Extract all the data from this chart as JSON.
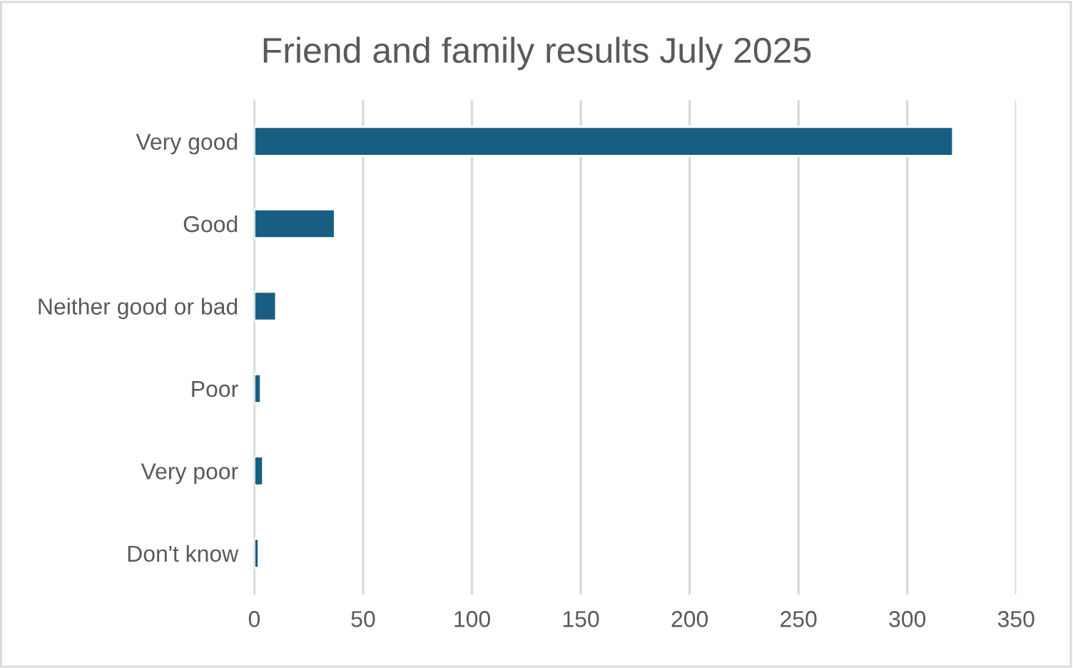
{
  "chart_data": {
    "type": "bar",
    "orientation": "horizontal",
    "title": "Friend and family results July 2025",
    "categories": [
      "Very good",
      "Good",
      "Neither good or bad",
      "Poor",
      "Very poor",
      "Don't know"
    ],
    "values": [
      321,
      37,
      10,
      3,
      4,
      2
    ],
    "color": "#185e82",
    "xlim": [
      0,
      350
    ],
    "xticks": [
      0,
      50,
      100,
      150,
      200,
      250,
      300,
      350
    ],
    "grid": "x"
  }
}
